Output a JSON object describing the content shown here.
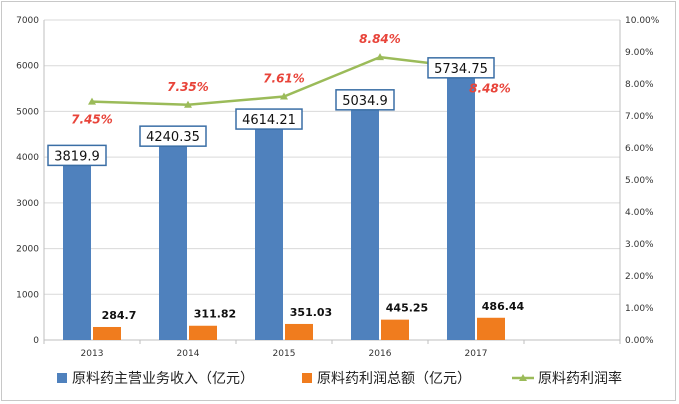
{
  "chart_data": {
    "type": "bar",
    "categories": [
      "2013",
      "2014",
      "2015",
      "2016",
      "2017"
    ],
    "series": [
      {
        "name": "原料药主营业务收入（亿元）",
        "type": "bar",
        "axis": "left",
        "color": "#4f81bd",
        "values": [
          3819.9,
          4240.35,
          4614.21,
          5034.9,
          5734.75
        ],
        "labels": [
          "3819.9",
          "4240.35",
          "4614.21",
          "5034.9",
          "5734.75"
        ]
      },
      {
        "name": "原料药利润总额（亿元）",
        "type": "bar",
        "axis": "left",
        "color": "#f07c1e",
        "values": [
          284.7,
          311.82,
          351.03,
          445.25,
          486.44
        ],
        "labels": [
          "284.7",
          "311.82",
          "351.03",
          "445.25",
          "486.44"
        ]
      },
      {
        "name": "原料药利润率",
        "type": "line",
        "axis": "right",
        "color": "#9bbb59",
        "values": [
          7.45,
          7.35,
          7.61,
          8.84,
          8.48
        ],
        "labels": [
          "7.45%",
          "7.35%",
          "7.61%",
          "8.84%",
          "8.48%"
        ]
      }
    ],
    "y_left": {
      "min": 0,
      "max": 7000,
      "step": 1000,
      "ticks": [
        "0",
        "1000",
        "2000",
        "3000",
        "4000",
        "5000",
        "6000",
        "7000"
      ]
    },
    "y_right": {
      "min": 0,
      "max": 10,
      "step": 1,
      "ticks": [
        "0.00%",
        "1.00%",
        "2.00%",
        "3.00%",
        "4.00%",
        "5.00%",
        "6.00%",
        "7.00%",
        "8.00%",
        "9.00%",
        "10.00%"
      ]
    },
    "title": "",
    "xlabel": "",
    "ylabel": "",
    "grid": true,
    "legend_position": "bottom"
  }
}
